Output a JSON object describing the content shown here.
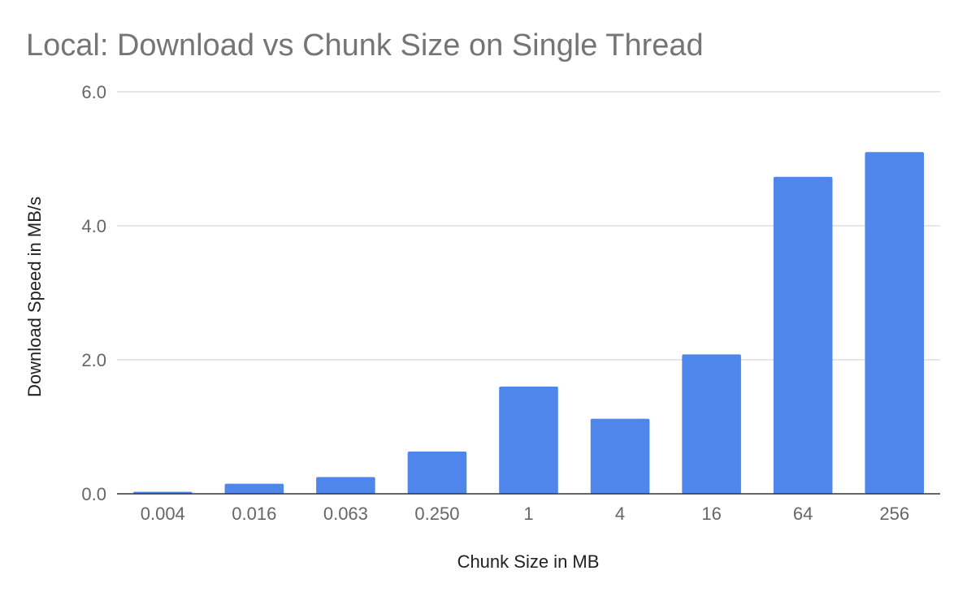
{
  "chart_data": {
    "type": "bar",
    "title": "Local: Download vs Chunk Size on Single Thread",
    "xlabel": "Chunk Size in MB",
    "ylabel": "Download Speed in MB/s",
    "categories": [
      "0.004",
      "0.016",
      "0.063",
      "0.250",
      "1",
      "4",
      "16",
      "64",
      "256"
    ],
    "values": [
      0.03,
      0.15,
      0.25,
      0.63,
      1.6,
      1.12,
      2.08,
      4.73,
      5.1
    ],
    "ylim": [
      0,
      6
    ],
    "yticks": [
      "0.0",
      "2.0",
      "4.0",
      "6.0"
    ],
    "ytick_values": [
      0,
      2,
      4,
      6
    ],
    "grid": true,
    "legend": "none",
    "bar_color": "#4f86ec"
  }
}
